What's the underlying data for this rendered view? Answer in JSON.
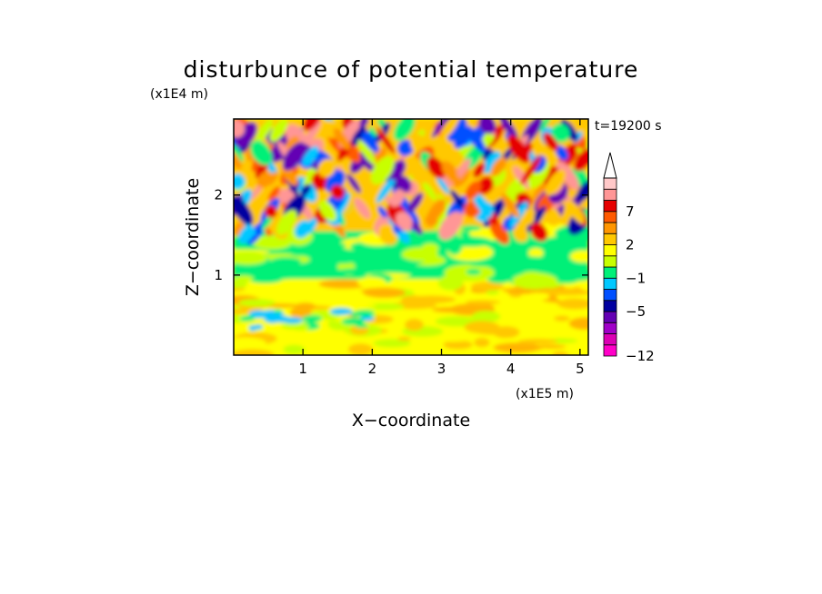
{
  "chart_data": {
    "type": "heatmap",
    "title": "disturbunce of potential temperature",
    "time_label": "t=19200 s",
    "xlabel": "X−coordinate",
    "ylabel": "Z−coordinate",
    "x_unit": "(x1E5 m)",
    "y_unit": "(x1E4 m)",
    "xlim": [
      0,
      5.12
    ],
    "ylim": [
      0,
      2.95
    ],
    "x_ticks": [
      1,
      2,
      3,
      4,
      5
    ],
    "y_ticks": [
      1,
      2
    ],
    "x_tick_labels": [
      "1",
      "2",
      "3",
      "4",
      "5"
    ],
    "y_tick_labels": [
      "1",
      "2"
    ],
    "colorbar": {
      "levels": [
        -12,
        -5,
        -1,
        2,
        7
      ],
      "level_labels": [
        "−12",
        "−5",
        "−1",
        "2",
        "7"
      ],
      "colors": [
        "#ff00c8",
        "#dc00b4",
        "#a000c8",
        "#6400b4",
        "#0000a0",
        "#0050ff",
        "#00c8ff",
        "#00f078",
        "#c8ff00",
        "#ffff00",
        "#ffc800",
        "#ff9600",
        "#ff5a00",
        "#e60000",
        "#ff9696",
        "#ffc8c8"
      ],
      "extend": "max"
    },
    "field_description_regions": [
      {
        "z_range": [
          0,
          0.9
        ],
        "dominant_color": "#ffff00"
      },
      {
        "z_range": [
          0.9,
          1.5
        ],
        "dominant_color": "#00f078"
      },
      {
        "z_range": [
          1.5,
          2.95
        ],
        "dominant_color": "mixed"
      }
    ]
  }
}
